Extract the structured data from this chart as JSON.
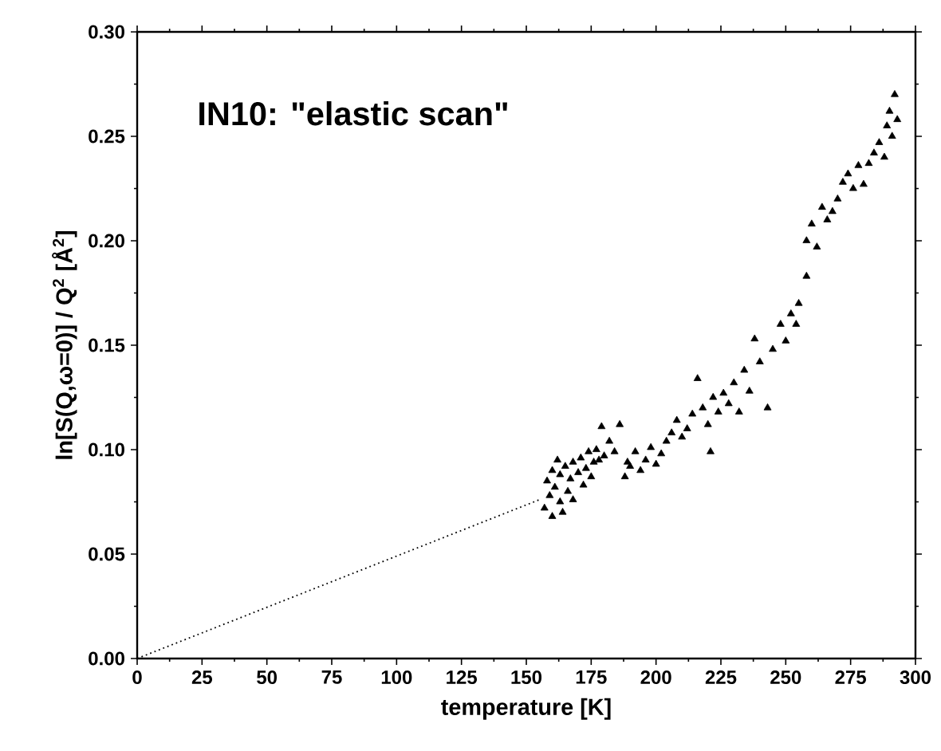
{
  "chart_data": {
    "type": "scatter",
    "xlabel": "temperature [K]",
    "ylabel": "ln[S(Q,ω=0)] / Q$^{2}$ [Å$^{2}$]",
    "annotations": [
      "IN10:  \"elastic scan\""
    ],
    "xlim": [
      0,
      300
    ],
    "ylim": [
      0,
      0.3
    ],
    "xticks": [
      0,
      25,
      50,
      75,
      100,
      125,
      150,
      175,
      200,
      225,
      250,
      275,
      300
    ],
    "yticks": [
      {
        "value": 0,
        "label": "0.00"
      },
      {
        "value": 0.05,
        "label": "0.05"
      },
      {
        "value": 0.1,
        "label": "0.10"
      },
      {
        "value": 0.15,
        "label": "0.15"
      },
      {
        "value": 0.2,
        "label": "0.20"
      },
      {
        "value": 0.25,
        "label": "0.25"
      },
      {
        "value": 0.3,
        "label": "0.30"
      }
    ],
    "grid": false,
    "series": [
      {
        "marker": "triangle",
        "color": "#000000",
        "x": [
          157,
          158,
          159,
          160,
          160,
          161,
          162,
          163,
          163,
          164,
          165,
          166,
          167,
          168,
          168,
          170,
          171,
          172,
          173,
          174,
          175,
          176,
          177,
          178,
          179,
          180,
          182,
          184,
          186,
          188,
          189,
          190,
          192,
          194,
          196,
          198,
          200,
          202,
          204,
          206,
          208,
          210,
          212,
          214,
          216,
          218,
          220,
          221,
          222,
          224,
          226,
          228,
          230,
          232,
          234,
          236,
          238,
          240,
          243,
          245,
          248,
          250,
          252,
          254,
          255,
          258,
          258,
          260,
          262,
          264,
          266,
          268,
          270,
          272,
          274,
          276,
          278,
          280,
          282,
          284,
          286,
          288,
          289,
          290,
          291,
          292,
          293
        ],
        "values": [
          0.072,
          0.085,
          0.078,
          0.068,
          0.09,
          0.082,
          0.095,
          0.075,
          0.088,
          0.07,
          0.092,
          0.08,
          0.086,
          0.094,
          0.076,
          0.089,
          0.096,
          0.083,
          0.091,
          0.099,
          0.087,
          0.094,
          0.1,
          0.095,
          0.111,
          0.097,
          0.104,
          0.099,
          0.112,
          0.087,
          0.094,
          0.092,
          0.099,
          0.09,
          0.095,
          0.101,
          0.093,
          0.098,
          0.104,
          0.108,
          0.114,
          0.106,
          0.11,
          0.117,
          0.134,
          0.12,
          0.112,
          0.099,
          0.125,
          0.118,
          0.127,
          0.122,
          0.132,
          0.118,
          0.138,
          0.128,
          0.153,
          0.142,
          0.12,
          0.148,
          0.16,
          0.152,
          0.165,
          0.16,
          0.17,
          0.183,
          0.2,
          0.208,
          0.197,
          0.216,
          0.21,
          0.214,
          0.22,
          0.228,
          0.232,
          0.225,
          0.236,
          0.227,
          0.237,
          0.242,
          0.247,
          0.24,
          0.255,
          0.262,
          0.25,
          0.27,
          0.258
        ]
      },
      {
        "type": "line",
        "line_style": "dotted",
        "color": "#000000",
        "x": [
          0,
          155
        ],
        "values": [
          0,
          0.076
        ]
      }
    ]
  }
}
